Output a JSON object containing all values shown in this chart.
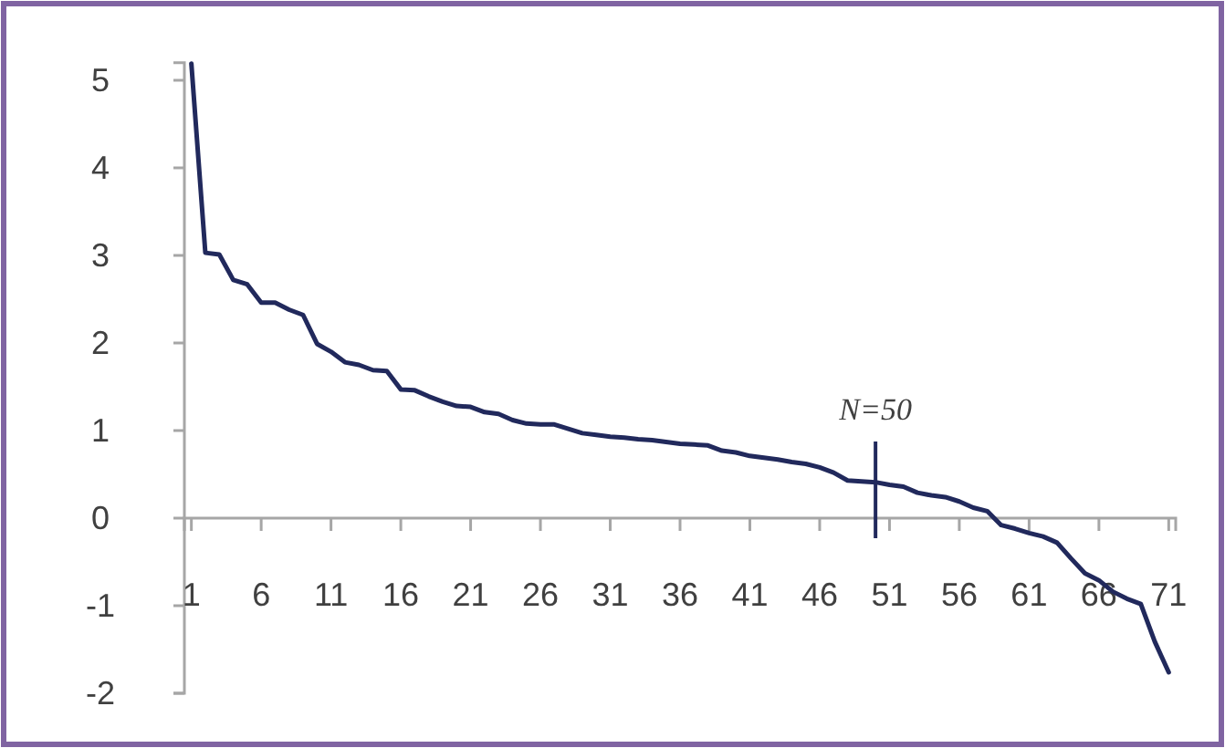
{
  "chart_data": {
    "type": "line",
    "x": [
      1,
      2,
      3,
      4,
      5,
      6,
      7,
      8,
      9,
      10,
      11,
      12,
      13,
      14,
      15,
      16,
      17,
      18,
      19,
      20,
      21,
      22,
      23,
      24,
      25,
      26,
      27,
      28,
      29,
      30,
      31,
      32,
      33,
      34,
      35,
      36,
      37,
      38,
      39,
      40,
      41,
      42,
      43,
      44,
      45,
      46,
      47,
      48,
      49,
      50,
      51,
      52,
      53,
      54,
      55,
      56,
      57,
      58,
      59,
      60,
      61,
      62,
      63,
      64,
      65,
      66,
      67,
      68,
      69,
      70,
      71
    ],
    "series": [
      {
        "color": "#21295c",
        "values": [
          5.19,
          3.03,
          3.01,
          2.72,
          2.67,
          2.46,
          2.46,
          2.38,
          2.32,
          1.99,
          1.9,
          1.78,
          1.75,
          1.69,
          1.68,
          1.47,
          1.46,
          1.39,
          1.33,
          1.28,
          1.27,
          1.21,
          1.19,
          1.12,
          1.08,
          1.07,
          1.07,
          1.02,
          0.97,
          0.95,
          0.93,
          0.92,
          0.9,
          0.89,
          0.87,
          0.85,
          0.84,
          0.83,
          0.77,
          0.75,
          0.71,
          0.69,
          0.67,
          0.64,
          0.62,
          0.58,
          0.52,
          0.43,
          0.42,
          0.41,
          0.38,
          0.36,
          0.29,
          0.26,
          0.24,
          0.19,
          0.12,
          0.08,
          -0.08,
          -0.12,
          -0.17,
          -0.21,
          -0.28,
          -0.46,
          -0.63,
          -0.71,
          -0.84,
          -0.92,
          -0.98,
          -1.41,
          -1.76
        ]
      }
    ],
    "xlim": [
      0.5,
      71.5
    ],
    "xticks": [
      1,
      6,
      11,
      16,
      21,
      26,
      31,
      36,
      41,
      46,
      51,
      56,
      61,
      66,
      71
    ],
    "ylim": [
      -2,
      5.2
    ],
    "yticks": [
      -2,
      -1,
      0,
      1,
      2,
      3,
      4,
      5
    ],
    "ref_lines": [
      {
        "axis": "x",
        "value": 50,
        "label": "N=50"
      }
    ],
    "grid": false,
    "marker": "none",
    "line_style": "solid"
  }
}
